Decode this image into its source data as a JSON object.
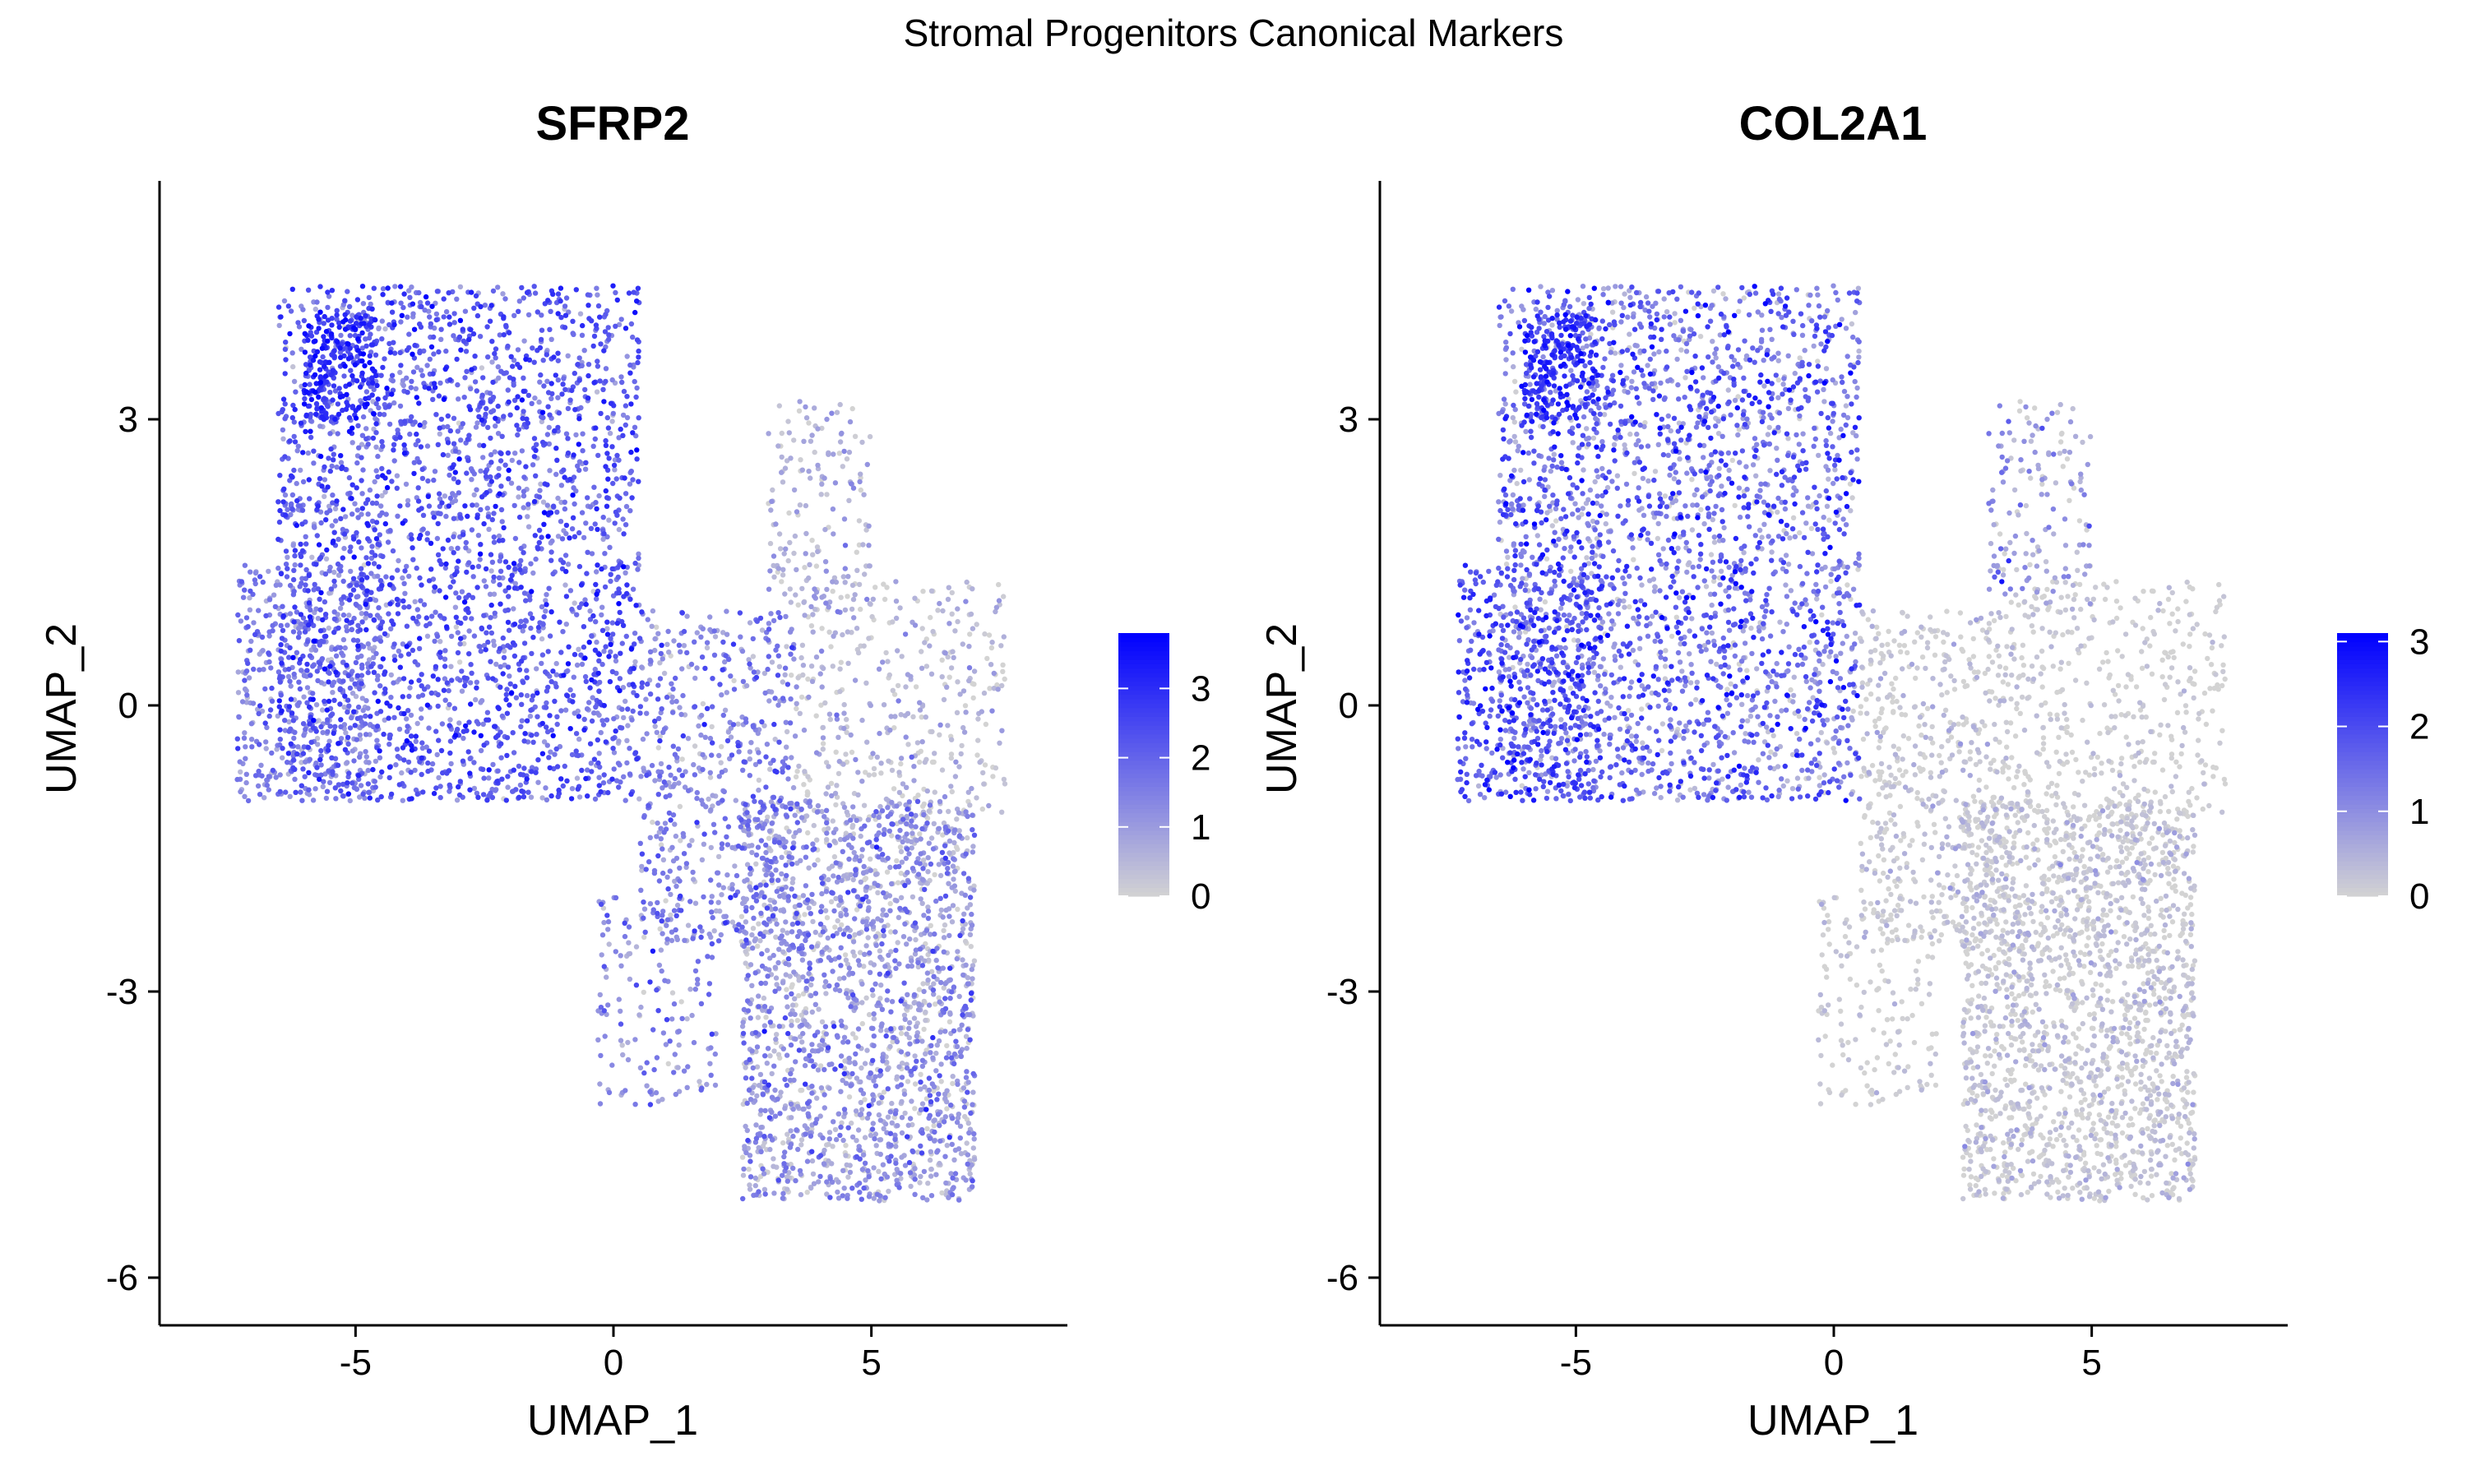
{
  "suptitle": "Stromal Progenitors Canonical Markers",
  "colors": {
    "low": "#d3d3d3",
    "high": "#0000ff",
    "axis": "#000000"
  },
  "chart_data": [
    {
      "type": "scatter",
      "title": "SFRP2",
      "xlabel": "UMAP_1",
      "ylabel": "UMAP_2",
      "xlim": [
        -8.8,
        8.8
      ],
      "ylim": [
        -6.5,
        5.5
      ],
      "x_ticks": [
        -5,
        0,
        5
      ],
      "y_ticks": [
        -6,
        -3,
        0,
        3
      ],
      "grid": false,
      "legend": {
        "position": "right",
        "type": "colorbar",
        "min": 0,
        "max": 3.8,
        "ticks": [
          0,
          1,
          2,
          3
        ]
      },
      "series": [
        {
          "clusters": [
            {
              "name": "upper-left-block",
              "n": 2600,
              "x_range": [
                -6.5,
                0.5
              ],
              "y_range": [
                -1.0,
                4.4
              ],
              "expr_mean": 2.1,
              "expr_sd": 0.7
            },
            {
              "name": "left-lobe",
              "n": 500,
              "x_range": [
                -7.3,
                -4.5
              ],
              "y_range": [
                -1.0,
                1.5
              ],
              "expr_mean": 1.5,
              "expr_sd": 0.6
            },
            {
              "name": "hotspot-upper-left",
              "n": 200,
              "x_range": [
                -6.0,
                -4.6
              ],
              "y_range": [
                3.0,
                4.1
              ],
              "expr_mean": 3.1,
              "expr_sd": 0.4
            },
            {
              "name": "diagonal-bridge",
              "n": 600,
              "x_range": [
                0.5,
                3.5
              ],
              "y_range": [
                -2.5,
                1.0
              ],
              "expr_mean": 1.4,
              "expr_sd": 0.7
            },
            {
              "name": "lower-right-body",
              "n": 1900,
              "x_range": [
                2.5,
                7.0
              ],
              "y_range": [
                -5.2,
                -1.0
              ],
              "expr_mean": 1.0,
              "expr_sd": 0.7
            },
            {
              "name": "right-arm",
              "n": 420,
              "x_range": [
                3.5,
                7.6
              ],
              "y_range": [
                -1.3,
                1.3
              ],
              "expr_mean": 0.4,
              "expr_sd": 0.5
            },
            {
              "name": "upper-spur",
              "n": 160,
              "x_range": [
                3.0,
                5.0
              ],
              "y_range": [
                1.0,
                3.2
              ],
              "expr_mean": 0.5,
              "expr_sd": 0.5
            },
            {
              "name": "lower-left-strand",
              "n": 150,
              "x_range": [
                -0.3,
                2.0
              ],
              "y_range": [
                -4.2,
                -2.0
              ],
              "expr_mean": 1.2,
              "expr_sd": 0.6
            }
          ]
        }
      ]
    },
    {
      "type": "scatter",
      "title": "COL2A1",
      "xlabel": "UMAP_1",
      "ylabel": "UMAP_2",
      "xlim": [
        -8.8,
        8.8
      ],
      "ylim": [
        -6.5,
        5.5
      ],
      "x_ticks": [
        -5,
        0,
        5
      ],
      "y_ticks": [
        -6,
        -3,
        0,
        3
      ],
      "grid": false,
      "legend": {
        "position": "right",
        "type": "colorbar",
        "min": 0,
        "max": 3.1,
        "ticks": [
          0,
          1,
          2,
          3
        ]
      },
      "series": [
        {
          "clusters": [
            {
              "name": "upper-left-block",
              "n": 2600,
              "x_range": [
                -6.5,
                0.5
              ],
              "y_range": [
                -1.0,
                4.4
              ],
              "expr_mean": 1.4,
              "expr_sd": 0.8
            },
            {
              "name": "left-lobe",
              "n": 500,
              "x_range": [
                -7.3,
                -4.5
              ],
              "y_range": [
                -1.0,
                1.5
              ],
              "expr_mean": 1.8,
              "expr_sd": 0.6
            },
            {
              "name": "hotspot-upper-left",
              "n": 200,
              "x_range": [
                -6.0,
                -4.6
              ],
              "y_range": [
                3.0,
                4.1
              ],
              "expr_mean": 2.4,
              "expr_sd": 0.4
            },
            {
              "name": "diagonal-bridge",
              "n": 600,
              "x_range": [
                0.5,
                3.5
              ],
              "y_range": [
                -2.5,
                1.0
              ],
              "expr_mean": 0.1,
              "expr_sd": 0.3
            },
            {
              "name": "lower-right-body",
              "n": 1900,
              "x_range": [
                2.5,
                7.0
              ],
              "y_range": [
                -5.2,
                -1.0
              ],
              "expr_mean": 0.1,
              "expr_sd": 0.3
            },
            {
              "name": "right-arm",
              "n": 420,
              "x_range": [
                3.5,
                7.6
              ],
              "y_range": [
                -1.3,
                1.3
              ],
              "expr_mean": 0.05,
              "expr_sd": 0.2
            },
            {
              "name": "upper-spur",
              "n": 160,
              "x_range": [
                3.0,
                5.0
              ],
              "y_range": [
                1.0,
                3.2
              ],
              "expr_mean": 0.6,
              "expr_sd": 0.6
            },
            {
              "name": "lower-left-strand",
              "n": 150,
              "x_range": [
                -0.3,
                2.0
              ],
              "y_range": [
                -4.2,
                -2.0
              ],
              "expr_mean": 0.05,
              "expr_sd": 0.2
            }
          ]
        }
      ]
    }
  ]
}
